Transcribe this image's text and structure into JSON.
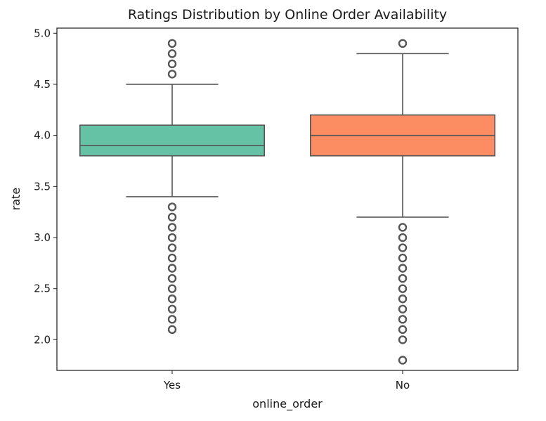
{
  "chart_data": {
    "type": "box",
    "title": "Ratings Distribution by Online Order Availability",
    "xlabel": "online_order",
    "ylabel": "rate",
    "categories": [
      "Yes",
      "No"
    ],
    "ylim": [
      1.7,
      5.05
    ],
    "yticks": [
      2.0,
      2.5,
      3.0,
      3.5,
      4.0,
      4.5,
      5.0
    ],
    "ytick_labels": [
      "2.0",
      "2.5",
      "3.0",
      "3.5",
      "4.0",
      "4.5",
      "5.0"
    ],
    "grid": false,
    "legend": "none",
    "boxes": [
      {
        "category": "Yes",
        "color": "#66c2a5",
        "q1": 3.8,
        "median": 3.9,
        "q3": 4.1,
        "whisker_low": 3.4,
        "whisker_high": 4.5,
        "outliers": [
          4.6,
          4.7,
          4.8,
          4.9,
          3.3,
          3.2,
          3.1,
          3.0,
          2.9,
          2.8,
          2.7,
          2.6,
          2.5,
          2.4,
          2.3,
          2.2,
          2.1
        ]
      },
      {
        "category": "No",
        "color": "#fc8d62",
        "q1": 3.8,
        "median": 4.0,
        "q3": 4.2,
        "whisker_low": 3.2,
        "whisker_high": 4.8,
        "outliers": [
          4.9,
          3.1,
          3.0,
          2.9,
          2.8,
          2.7,
          2.6,
          2.5,
          2.4,
          2.3,
          2.2,
          2.1,
          2.0,
          1.8
        ]
      }
    ]
  }
}
